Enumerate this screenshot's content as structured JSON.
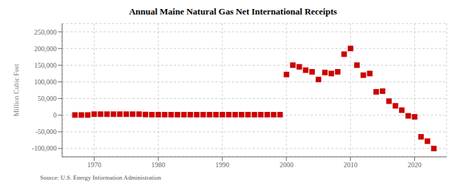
{
  "chart_data": {
    "type": "scatter",
    "title": "Annual Maine Natural Gas Net International Receipts",
    "y_label": "Million Cubic Feet",
    "annotations": [
      "Source: U.S. Energy Information Administration"
    ],
    "color": "#cc0000",
    "marker": "square",
    "grid": true,
    "x": [
      1967,
      1968,
      1969,
      1970,
      1971,
      1972,
      1973,
      1974,
      1975,
      1976,
      1977,
      1978,
      1979,
      1980,
      1981,
      1982,
      1983,
      1984,
      1985,
      1986,
      1987,
      1988,
      1989,
      1990,
      1991,
      1992,
      1993,
      1994,
      1995,
      1996,
      1997,
      1998,
      1999,
      2000,
      2001,
      2002,
      2003,
      2004,
      2005,
      2006,
      2007,
      2008,
      2009,
      2010,
      2011,
      2012,
      2013,
      2014,
      2015,
      2016,
      2017,
      2018,
      2019,
      2020,
      2021,
      2022,
      2023
    ],
    "values": [
      500,
      500,
      500,
      3000,
      3000,
      3000,
      3000,
      3000,
      3000,
      3000,
      3000,
      2000,
      1500,
      1500,
      1500,
      1500,
      1500,
      1500,
      1500,
      1500,
      1500,
      1500,
      1500,
      1500,
      1500,
      1500,
      1500,
      1500,
      1500,
      1500,
      1500,
      1500,
      1500,
      122000,
      150000,
      145000,
      135000,
      130000,
      107000,
      128000,
      125000,
      130000,
      183000,
      200000,
      150000,
      120000,
      125000,
      70000,
      72000,
      42000,
      28000,
      15000,
      -2000,
      -5000,
      -65000,
      -78000,
      -100000
    ],
    "xlim": [
      1965,
      2025
    ],
    "xticks": [
      1970,
      1980,
      1990,
      2000,
      2010,
      2020
    ],
    "ylim": [
      -125000,
      275000
    ],
    "yticks": [
      {
        "value": -100000,
        "label": "-100,000"
      },
      {
        "value": -50000,
        "label": "-50,000"
      },
      0,
      {
        "value": 50000,
        "label": "50,000"
      },
      {
        "value": 100000,
        "label": "100,000"
      },
      {
        "value": 150000,
        "label": "150,000"
      },
      {
        "value": 200000,
        "label": "200,000"
      },
      {
        "value": 250000,
        "label": "250,000"
      }
    ]
  }
}
